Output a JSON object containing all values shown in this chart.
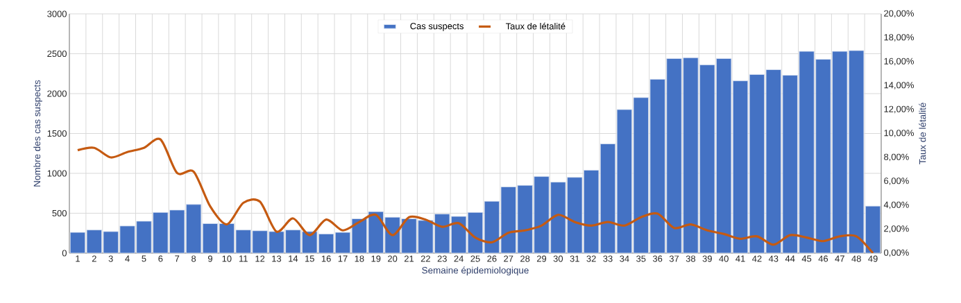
{
  "chart_data": {
    "type": "bar",
    "xlabel": "Semaine épidemiologique",
    "ylabel": "Nombre des cas suspects",
    "y2label": "Taux de létalité",
    "categories": [
      "1",
      "2",
      "3",
      "4",
      "5",
      "6",
      "7",
      "8",
      "9",
      "10",
      "11",
      "12",
      "13",
      "14",
      "15",
      "16",
      "17",
      "18",
      "19",
      "20",
      "21",
      "22",
      "23",
      "24",
      "25",
      "26",
      "27",
      "28",
      "29",
      "30",
      "31",
      "32",
      "33",
      "34",
      "35",
      "36",
      "37",
      "38",
      "39",
      "40",
      "41",
      "42",
      "43",
      "44",
      "45",
      "46",
      "47",
      "48",
      "49"
    ],
    "series": [
      {
        "name": "Cas suspects",
        "color": "#4472c4",
        "values": [
          260,
          290,
          270,
          340,
          400,
          510,
          540,
          610,
          370,
          370,
          290,
          280,
          270,
          290,
          270,
          240,
          260,
          430,
          520,
          450,
          430,
          410,
          490,
          460,
          510,
          650,
          830,
          850,
          960,
          890,
          950,
          1040,
          1370,
          1800,
          1950,
          2180,
          2440,
          2450,
          2360,
          2440,
          2160,
          2240,
          2300,
          2230,
          2530,
          2430,
          2530,
          2540,
          590
        ]
      },
      {
        "name": "Taux de létalité",
        "type": "line",
        "axis": "y2",
        "color": "#c55a11",
        "values": [
          8.6,
          8.8,
          8.0,
          8.45,
          8.8,
          9.5,
          6.7,
          6.8,
          3.9,
          2.4,
          4.2,
          4.3,
          1.8,
          2.9,
          1.5,
          2.8,
          1.9,
          2.6,
          3.2,
          1.5,
          3.0,
          2.8,
          2.2,
          2.5,
          1.3,
          0.9,
          1.7,
          1.9,
          2.3,
          3.2,
          2.6,
          2.3,
          2.6,
          2.3,
          3.0,
          3.3,
          2.1,
          2.4,
          1.9,
          1.6,
          1.2,
          1.4,
          0.7,
          1.5,
          1.3,
          1.0,
          1.4,
          1.4,
          0
        ]
      }
    ],
    "ylim": [
      0,
      3000
    ],
    "yticks": [
      0,
      500,
      1000,
      1500,
      2000,
      2500,
      3000
    ],
    "y2lim": [
      0,
      20
    ],
    "y2ticks": [
      {
        "value": 0,
        "label": "0,00%"
      },
      {
        "value": 2,
        "label": "2,00%"
      },
      {
        "value": 4,
        "label": "4,00%"
      },
      {
        "value": 6,
        "label": "6,00%"
      },
      {
        "value": 8,
        "label": "8,00%"
      },
      {
        "value": 10,
        "label": "10,00%"
      },
      {
        "value": 12,
        "label": "12,00%"
      },
      {
        "value": 14,
        "label": "14,00%"
      },
      {
        "value": 16,
        "label": "16,00%"
      },
      {
        "value": 18,
        "label": "18,00%"
      },
      {
        "value": 20,
        "label": "20,00%"
      }
    ],
    "grid": true,
    "legend": "top",
    "marker": "none",
    "line_style": "solid"
  }
}
